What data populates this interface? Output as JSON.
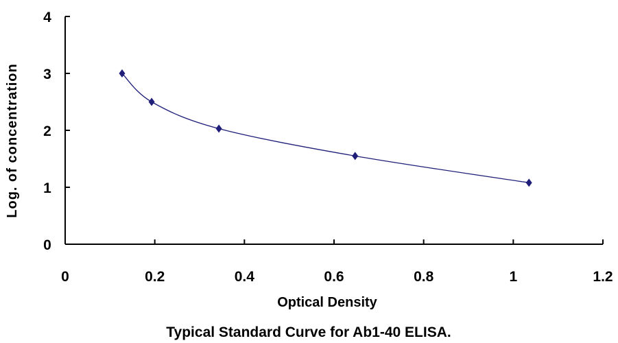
{
  "chart_data": {
    "type": "scatter",
    "title": "",
    "caption": "Typical Standard Curve for Ab1-40 ELISA.",
    "xlabel": "Optical Density",
    "ylabel": "Log. of concentration",
    "xlim": [
      0,
      1.2
    ],
    "ylim": [
      0,
      4
    ],
    "x_ticks": [
      "0",
      "0.2",
      "0.4",
      "0.6",
      "0.8",
      "1",
      "1.2"
    ],
    "y_ticks": [
      "0",
      "1",
      "2",
      "3",
      "4"
    ],
    "grid": false,
    "legend": "none",
    "series": [
      {
        "x": [
          0.127,
          0.193,
          0.343,
          0.647,
          1.035
        ],
        "y": [
          3.0,
          2.5,
          2.03,
          1.55,
          1.08
        ],
        "marker": "diamond",
        "fit": "smooth curve",
        "color": "#1f1f7a"
      }
    ]
  }
}
